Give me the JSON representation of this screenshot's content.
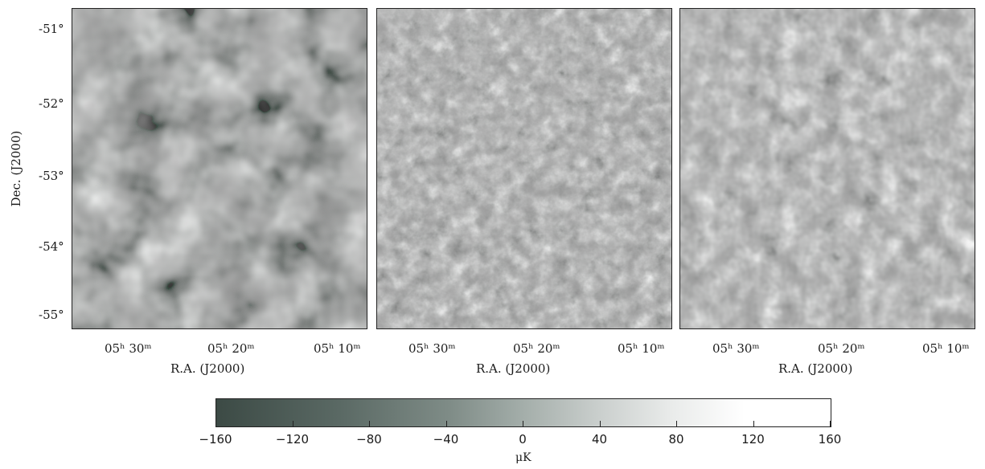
{
  "y_axis": {
    "label": "Dec. (J2000)",
    "ticks": [
      "-51°",
      "-52°",
      "-53°",
      "-54°",
      "-55°"
    ]
  },
  "panels": [
    {
      "x_ticks": [
        "05ʰ 30ᵐ",
        "05ʰ 20ᵐ",
        "05ʰ 10ᵐ"
      ],
      "x_label": "R.A. (J2000)",
      "texture": "large-scale"
    },
    {
      "x_ticks": [
        "05ʰ 30ᵐ",
        "05ʰ 20ᵐ",
        "05ʰ 10ᵐ"
      ],
      "x_label": "R.A. (J2000)",
      "texture": "fine-scale"
    },
    {
      "x_ticks": [
        "05ʰ 30ᵐ",
        "05ʰ 20ᵐ",
        "05ʰ 10ᵐ"
      ],
      "x_label": "R.A. (J2000)",
      "texture": "medium-scale"
    }
  ],
  "colorbar": {
    "ticks": [
      "−160",
      "−120",
      "−80",
      "−40",
      "0",
      "40",
      "80",
      "120",
      "160"
    ],
    "range": [
      -160,
      160
    ],
    "unit": "μK",
    "colors": [
      "#3c4a45",
      "#a4aeaa",
      "#ffffff"
    ]
  }
}
